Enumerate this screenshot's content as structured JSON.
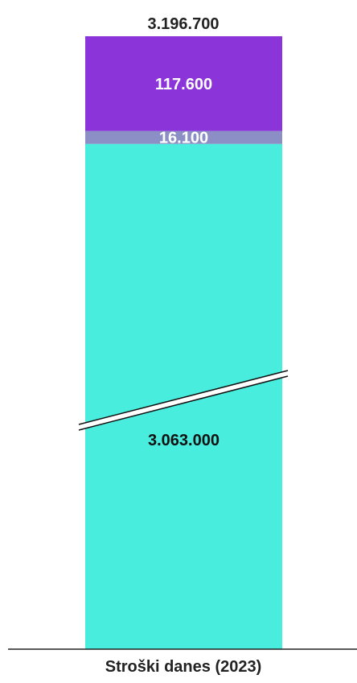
{
  "chart_data": {
    "type": "bar",
    "stacked": true,
    "axis_break": true,
    "categories": [
      "Stroški danes (2023)"
    ],
    "total_label": "3.196.700",
    "series": [
      {
        "value": 3063000,
        "label": "3.063.000",
        "color": "#48EDDD",
        "label_color": "#111111"
      },
      {
        "value": 16100,
        "label": "16.100",
        "color": "#8C8FC5",
        "label_color": "#ffffff"
      },
      {
        "value": 117600,
        "label": "117.600",
        "color": "#8A34DA",
        "label_color": "#ffffff"
      }
    ]
  }
}
